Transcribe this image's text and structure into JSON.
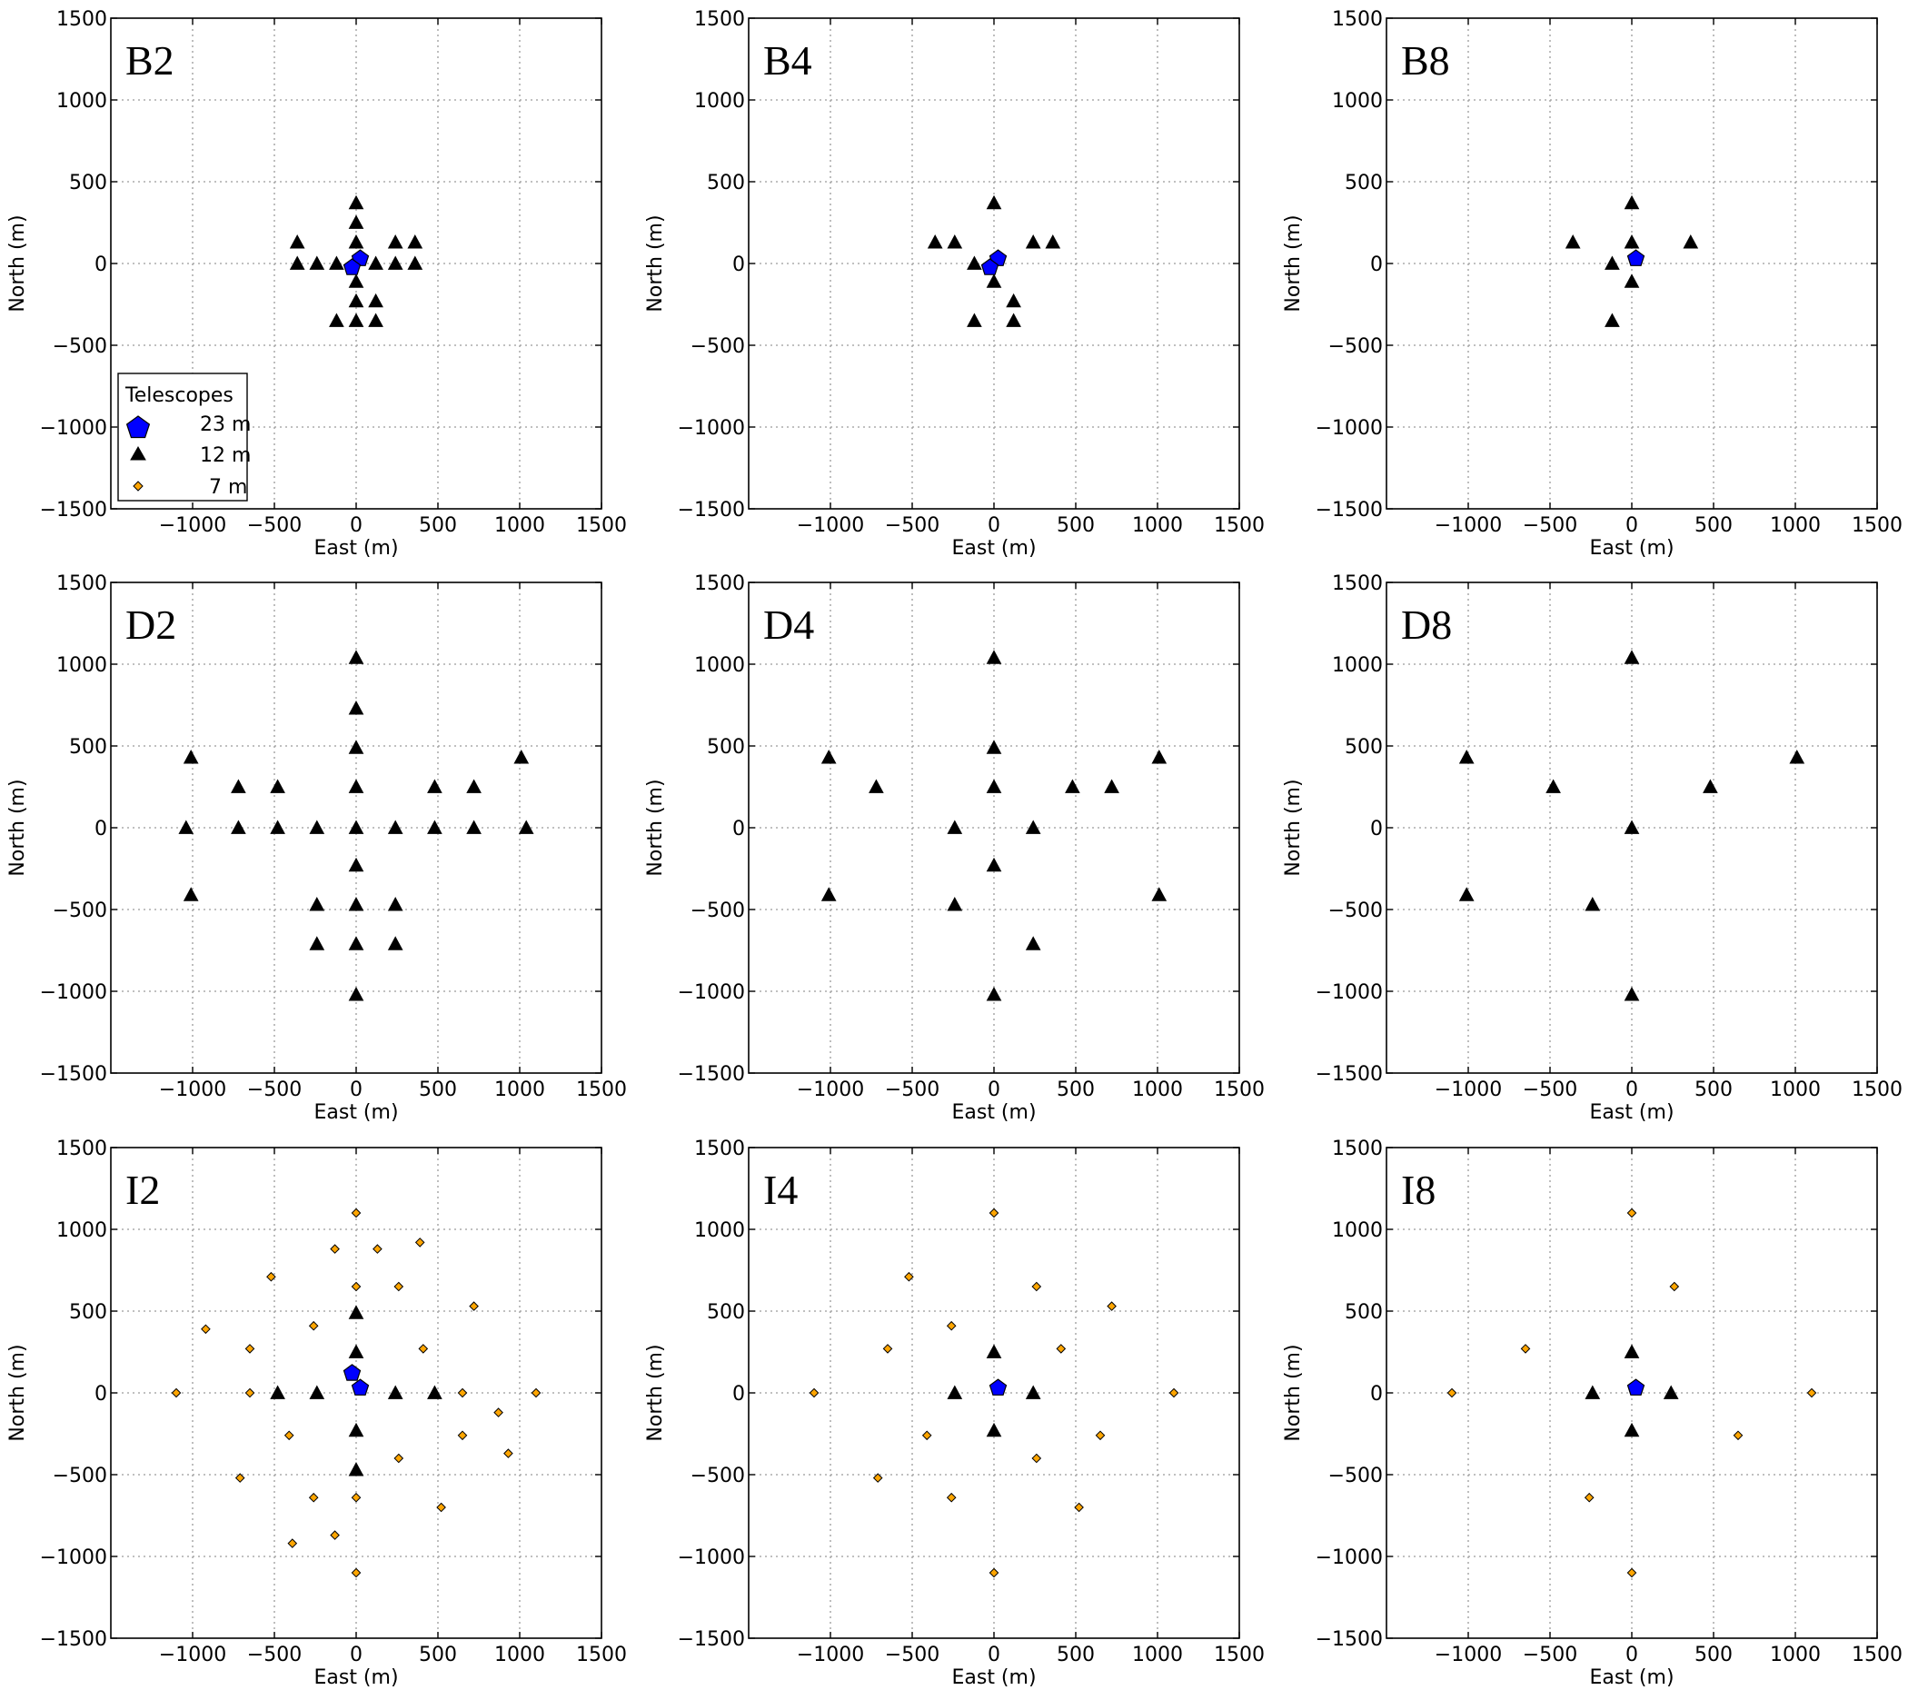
{
  "figure": {
    "xlabel": "East (m)",
    "ylabel": "North (m)",
    "tick_values": [
      -1500,
      -1000,
      -500,
      0,
      500,
      1000,
      1500
    ],
    "xtick_labels": [
      "−1000",
      "−500",
      "0",
      "500",
      "1000",
      "1500"
    ],
    "xtick_values": [
      -1000,
      -500,
      0,
      500,
      1000,
      1500
    ],
    "ytick_labels": [
      "−1500",
      "−1000",
      "−500",
      "0",
      "500",
      "1000",
      "1500"
    ],
    "ytick_values": [
      -1500,
      -1000,
      -500,
      0,
      500,
      1000,
      1500
    ]
  },
  "legend": {
    "title": "Telescopes",
    "entries": [
      {
        "series": "23m",
        "label": "23 m"
      },
      {
        "series": "12m",
        "label": "12 m"
      },
      {
        "series": "7m",
        "label": "7 m"
      }
    ]
  },
  "colors": {
    "23m": "#0000ff",
    "12m": "#000000",
    "7m": "#ffa500",
    "grid": "#9a9a9a"
  },
  "chart_data": [
    {
      "type": "scatter",
      "title": "B2",
      "xlabel": "East (m)",
      "ylabel": "North (m)",
      "xlim": [
        -1500,
        1500
      ],
      "ylim": [
        -1500,
        1500
      ],
      "grid": true,
      "legend": "lower-left",
      "series": [
        {
          "name": "23 m",
          "marker": "pentagon",
          "points": [
            [
              25,
              30
            ],
            [
              -25,
              -25
            ]
          ]
        },
        {
          "name": "12 m",
          "marker": "triangle",
          "points": [
            [
              0,
              370
            ],
            [
              0,
              250
            ],
            [
              0,
              130
            ],
            [
              -360,
              130
            ],
            [
              240,
              130
            ],
            [
              360,
              130
            ],
            [
              -360,
              0
            ],
            [
              -240,
              0
            ],
            [
              -120,
              0
            ],
            [
              120,
              0
            ],
            [
              240,
              0
            ],
            [
              360,
              0
            ],
            [
              0,
              -110
            ],
            [
              0,
              -230
            ],
            [
              120,
              -230
            ],
            [
              -120,
              -350
            ],
            [
              0,
              -350
            ],
            [
              120,
              -350
            ]
          ]
        },
        {
          "name": "7 m",
          "marker": "diamond",
          "points": []
        }
      ]
    },
    {
      "type": "scatter",
      "title": "B4",
      "xlabel": "East (m)",
      "ylabel": "North (m)",
      "xlim": [
        -1500,
        1500
      ],
      "ylim": [
        -1500,
        1500
      ],
      "grid": true,
      "series": [
        {
          "name": "23 m",
          "marker": "pentagon",
          "points": [
            [
              25,
              30
            ],
            [
              -25,
              -25
            ]
          ]
        },
        {
          "name": "12 m",
          "marker": "triangle",
          "points": [
            [
              0,
              370
            ],
            [
              -360,
              130
            ],
            [
              -240,
              130
            ],
            [
              240,
              130
            ],
            [
              360,
              130
            ],
            [
              -120,
              0
            ],
            [
              0,
              -110
            ],
            [
              120,
              -230
            ],
            [
              -120,
              -350
            ],
            [
              120,
              -350
            ]
          ]
        },
        {
          "name": "7 m",
          "marker": "diamond",
          "points": []
        }
      ]
    },
    {
      "type": "scatter",
      "title": "B8",
      "xlabel": "East (m)",
      "ylabel": "North (m)",
      "xlim": [
        -1500,
        1500
      ],
      "ylim": [
        -1500,
        1500
      ],
      "grid": true,
      "series": [
        {
          "name": "23 m",
          "marker": "pentagon",
          "points": [
            [
              25,
              30
            ]
          ]
        },
        {
          "name": "12 m",
          "marker": "triangle",
          "points": [
            [
              0,
              370
            ],
            [
              0,
              130
            ],
            [
              -360,
              130
            ],
            [
              360,
              130
            ],
            [
              -120,
              0
            ],
            [
              0,
              -110
            ],
            [
              -120,
              -350
            ]
          ]
        },
        {
          "name": "7 m",
          "marker": "diamond",
          "points": []
        }
      ]
    },
    {
      "type": "scatter",
      "title": "D2",
      "xlabel": "East (m)",
      "ylabel": "North (m)",
      "xlim": [
        -1500,
        1500
      ],
      "ylim": [
        -1500,
        1500
      ],
      "grid": true,
      "series": [
        {
          "name": "23 m",
          "marker": "pentagon",
          "points": []
        },
        {
          "name": "12 m",
          "marker": "triangle",
          "points": [
            [
              0,
              1040
            ],
            [
              0,
              730
            ],
            [
              0,
              490
            ],
            [
              -1010,
              430
            ],
            [
              1010,
              430
            ],
            [
              -720,
              250
            ],
            [
              -480,
              250
            ],
            [
              0,
              250
            ],
            [
              480,
              250
            ],
            [
              720,
              250
            ],
            [
              -1040,
              0
            ],
            [
              -720,
              0
            ],
            [
              -480,
              0
            ],
            [
              -240,
              0
            ],
            [
              0,
              0
            ],
            [
              240,
              0
            ],
            [
              480,
              0
            ],
            [
              720,
              0
            ],
            [
              1040,
              0
            ],
            [
              0,
              -230
            ],
            [
              -1010,
              -410
            ],
            [
              -240,
              -470
            ],
            [
              0,
              -470
            ],
            [
              240,
              -470
            ],
            [
              -240,
              -710
            ],
            [
              0,
              -710
            ],
            [
              240,
              -710
            ],
            [
              0,
              -1020
            ]
          ]
        },
        {
          "name": "7 m",
          "marker": "diamond",
          "points": []
        }
      ]
    },
    {
      "type": "scatter",
      "title": "D4",
      "xlabel": "East (m)",
      "ylabel": "North (m)",
      "xlim": [
        -1500,
        1500
      ],
      "ylim": [
        -1500,
        1500
      ],
      "grid": true,
      "series": [
        {
          "name": "23 m",
          "marker": "pentagon",
          "points": []
        },
        {
          "name": "12 m",
          "marker": "triangle",
          "points": [
            [
              0,
              1040
            ],
            [
              0,
              490
            ],
            [
              -1010,
              430
            ],
            [
              1010,
              430
            ],
            [
              -720,
              250
            ],
            [
              0,
              250
            ],
            [
              480,
              250
            ],
            [
              720,
              250
            ],
            [
              -240,
              0
            ],
            [
              240,
              0
            ],
            [
              0,
              -230
            ],
            [
              -1010,
              -410
            ],
            [
              1010,
              -410
            ],
            [
              -240,
              -470
            ],
            [
              240,
              -710
            ],
            [
              0,
              -1020
            ]
          ]
        },
        {
          "name": "7 m",
          "marker": "diamond",
          "points": []
        }
      ]
    },
    {
      "type": "scatter",
      "title": "D8",
      "xlabel": "East (m)",
      "ylabel": "North (m)",
      "xlim": [
        -1500,
        1500
      ],
      "ylim": [
        -1500,
        1500
      ],
      "grid": true,
      "series": [
        {
          "name": "23 m",
          "marker": "pentagon",
          "points": []
        },
        {
          "name": "12 m",
          "marker": "triangle",
          "points": [
            [
              0,
              1040
            ],
            [
              -1010,
              430
            ],
            [
              1010,
              430
            ],
            [
              -480,
              250
            ],
            [
              480,
              250
            ],
            [
              0,
              0
            ],
            [
              -1010,
              -410
            ],
            [
              -240,
              -470
            ],
            [
              0,
              -1020
            ]
          ]
        },
        {
          "name": "7 m",
          "marker": "diamond",
          "points": []
        }
      ]
    },
    {
      "type": "scatter",
      "title": "I2",
      "xlabel": "East (m)",
      "ylabel": "North (m)",
      "xlim": [
        -1500,
        1500
      ],
      "ylim": [
        -1500,
        1500
      ],
      "grid": true,
      "series": [
        {
          "name": "23 m",
          "marker": "pentagon",
          "points": [
            [
              25,
              30
            ],
            [
              -25,
              120
            ]
          ]
        },
        {
          "name": "12 m",
          "marker": "triangle",
          "points": [
            [
              0,
              490
            ],
            [
              0,
              250
            ],
            [
              -480,
              0
            ],
            [
              -240,
              0
            ],
            [
              240,
              0
            ],
            [
              480,
              0
            ],
            [
              0,
              -230
            ],
            [
              0,
              -470
            ]
          ]
        },
        {
          "name": "7 m",
          "marker": "diamond",
          "points": [
            [
              0,
              1100
            ],
            [
              -130,
              880
            ],
            [
              130,
              880
            ],
            [
              390,
              920
            ],
            [
              -520,
              710
            ],
            [
              0,
              650
            ],
            [
              260,
              650
            ],
            [
              720,
              530
            ],
            [
              -920,
              390
            ],
            [
              -260,
              410
            ],
            [
              -650,
              270
            ],
            [
              410,
              270
            ],
            [
              -1100,
              0
            ],
            [
              -650,
              0
            ],
            [
              650,
              0
            ],
            [
              1100,
              0
            ],
            [
              870,
              -120
            ],
            [
              -410,
              -260
            ],
            [
              650,
              -260
            ],
            [
              930,
              -370
            ],
            [
              260,
              -400
            ],
            [
              -710,
              -520
            ],
            [
              -260,
              -640
            ],
            [
              0,
              -640
            ],
            [
              520,
              -700
            ],
            [
              -130,
              -870
            ],
            [
              -390,
              -920
            ],
            [
              0,
              -1100
            ]
          ]
        }
      ]
    },
    {
      "type": "scatter",
      "title": "I4",
      "xlabel": "East (m)",
      "ylabel": "North (m)",
      "xlim": [
        -1500,
        1500
      ],
      "ylim": [
        -1500,
        1500
      ],
      "grid": true,
      "series": [
        {
          "name": "23 m",
          "marker": "pentagon",
          "points": [
            [
              25,
              30
            ]
          ]
        },
        {
          "name": "12 m",
          "marker": "triangle",
          "points": [
            [
              0,
              250
            ],
            [
              -240,
              0
            ],
            [
              240,
              0
            ],
            [
              0,
              -230
            ]
          ]
        },
        {
          "name": "7 m",
          "marker": "diamond",
          "points": [
            [
              0,
              1100
            ],
            [
              -520,
              710
            ],
            [
              260,
              650
            ],
            [
              720,
              530
            ],
            [
              -260,
              410
            ],
            [
              -650,
              270
            ],
            [
              410,
              270
            ],
            [
              -1100,
              0
            ],
            [
              1100,
              0
            ],
            [
              -410,
              -260
            ],
            [
              650,
              -260
            ],
            [
              260,
              -400
            ],
            [
              -710,
              -520
            ],
            [
              -260,
              -640
            ],
            [
              520,
              -700
            ],
            [
              0,
              -1100
            ]
          ]
        }
      ]
    },
    {
      "type": "scatter",
      "title": "I8",
      "xlabel": "East (m)",
      "ylabel": "North (m)",
      "xlim": [
        -1500,
        1500
      ],
      "ylim": [
        -1500,
        1500
      ],
      "grid": true,
      "series": [
        {
          "name": "23 m",
          "marker": "pentagon",
          "points": [
            [
              25,
              30
            ]
          ]
        },
        {
          "name": "12 m",
          "marker": "triangle",
          "points": [
            [
              0,
              250
            ],
            [
              -240,
              0
            ],
            [
              240,
              0
            ],
            [
              0,
              -230
            ]
          ]
        },
        {
          "name": "7 m",
          "marker": "diamond",
          "points": [
            [
              0,
              1100
            ],
            [
              260,
              650
            ],
            [
              -650,
              270
            ],
            [
              -1100,
              0
            ],
            [
              1100,
              0
            ],
            [
              650,
              -260
            ],
            [
              -260,
              -640
            ],
            [
              0,
              -1100
            ]
          ]
        }
      ]
    }
  ]
}
